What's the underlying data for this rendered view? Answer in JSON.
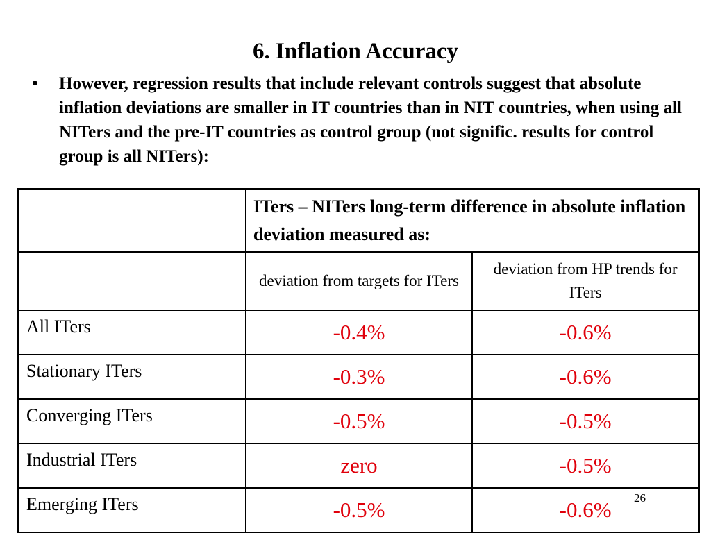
{
  "slide": {
    "title": "6. Inflation Accuracy",
    "bullet_symbol": "•",
    "bullet_text": "However, regression results that include relevant controls suggest that absolute inflation deviations are smaller in IT countries than in NIT countries, when using all NITers and the pre-IT countries as control group (not signific. results for control group is all NITers):",
    "page_number": "26"
  },
  "table": {
    "top_left": "",
    "header_main": "ITers – NITers long-term difference in absolute inflation deviation measured as:",
    "sub_left": "",
    "sub_headers": [
      "deviation from targets for ITers",
      "deviation from HP trends for ITers"
    ],
    "rows": [
      {
        "label": "All ITers",
        "targets": "-0.4%",
        "hp": "-0.6%"
      },
      {
        "label": "Stationary ITers",
        "targets": "-0.3%",
        "hp": "-0.6%"
      },
      {
        "label": "Converging ITers",
        "targets": "-0.5%",
        "hp": "-0.5%"
      },
      {
        "label": "Industrial ITers",
        "targets": "zero",
        "hp": "-0.5%"
      },
      {
        "label": "Emerging ITers",
        "targets": "-0.5%",
        "hp": "-0.6%"
      }
    ]
  },
  "colors": {
    "text": "#000000",
    "value": "#e0000b",
    "border": "#000000",
    "background": "#ffffff"
  }
}
